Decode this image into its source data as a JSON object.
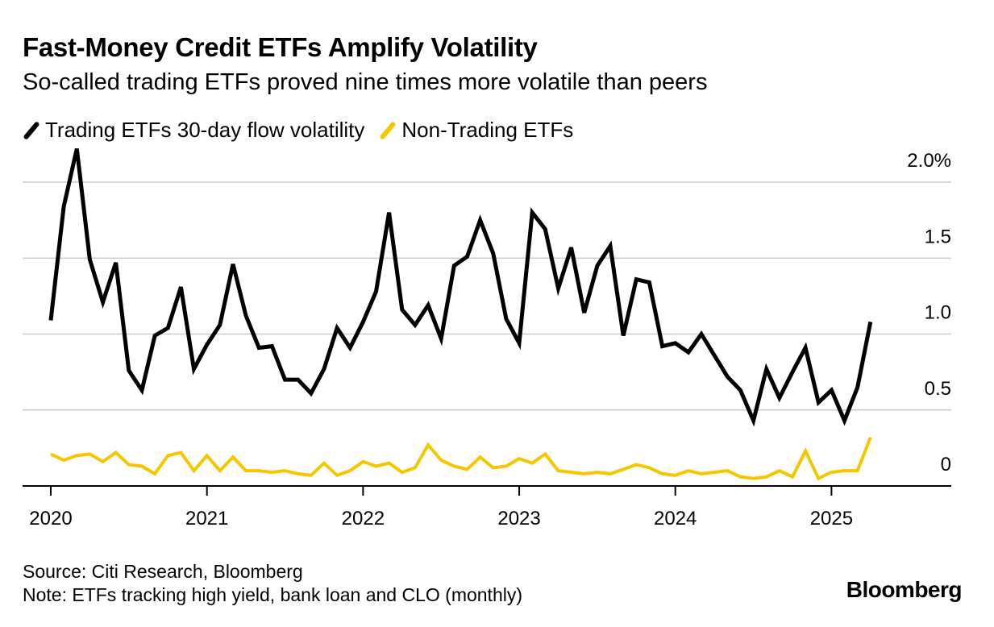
{
  "header": {
    "title": "Fast-Money Credit ETFs Amplify Volatility",
    "subtitle": "So-called trading ETFs proved nine times more volatile than peers"
  },
  "legend": [
    {
      "label": "Trading ETFs 30-day flow volatility",
      "color": "#000000"
    },
    {
      "label": "Non-Trading ETFs",
      "color": "#f5c700"
    }
  ],
  "footer": {
    "source": "Source: Citi Research, Bloomberg",
    "note": "Note: ETFs tracking high yield, bank loan and CLO (monthly)",
    "brand": "Bloomberg"
  },
  "chart_data": {
    "type": "line",
    "frequency": "monthly",
    "x_start": "2020-01",
    "x_tick_labels": [
      "2020",
      "2021",
      "2022",
      "2023",
      "2024",
      "2025"
    ],
    "y_tick_labels": [
      "2.0%",
      "1.5",
      "1.0",
      "0.5",
      "0"
    ],
    "y_ticks": [
      2.0,
      1.5,
      1.0,
      0.5,
      0
    ],
    "ylim": [
      0,
      2.0
    ],
    "grid": true,
    "legend_position": "top-left",
    "series": [
      {
        "name": "Trading ETFs 30-day flow volatility",
        "color": "#000000",
        "values": [
          1.09,
          1.84,
          2.22,
          1.49,
          1.21,
          1.47,
          0.76,
          0.63,
          0.99,
          1.04,
          1.31,
          0.77,
          0.93,
          1.06,
          1.46,
          1.12,
          0.91,
          0.92,
          0.7,
          0.7,
          0.61,
          0.77,
          1.04,
          0.91,
          1.08,
          1.28,
          1.8,
          1.16,
          1.06,
          1.19,
          0.97,
          1.45,
          1.51,
          1.75,
          1.53,
          1.1,
          0.94,
          1.8,
          1.69,
          1.3,
          1.57,
          1.14,
          1.45,
          1.58,
          0.99,
          1.36,
          1.34,
          0.92,
          0.94,
          0.88,
          1.0,
          0.86,
          0.72,
          0.63,
          0.43,
          0.77,
          0.58,
          0.75,
          0.91,
          0.55,
          0.63,
          0.43,
          0.65,
          1.08
        ]
      },
      {
        "name": "Non-Trading ETFs",
        "color": "#f5c700",
        "values": [
          0.21,
          0.17,
          0.2,
          0.21,
          0.16,
          0.22,
          0.14,
          0.13,
          0.08,
          0.2,
          0.22,
          0.1,
          0.2,
          0.1,
          0.19,
          0.1,
          0.1,
          0.09,
          0.1,
          0.08,
          0.07,
          0.15,
          0.07,
          0.1,
          0.16,
          0.13,
          0.15,
          0.09,
          0.12,
          0.27,
          0.17,
          0.13,
          0.11,
          0.19,
          0.12,
          0.13,
          0.18,
          0.15,
          0.21,
          0.1,
          0.09,
          0.08,
          0.09,
          0.08,
          0.11,
          0.14,
          0.12,
          0.08,
          0.07,
          0.1,
          0.08,
          0.09,
          0.1,
          0.06,
          0.05,
          0.06,
          0.1,
          0.06,
          0.23,
          0.05,
          0.09,
          0.1,
          0.1,
          0.32
        ]
      }
    ]
  }
}
